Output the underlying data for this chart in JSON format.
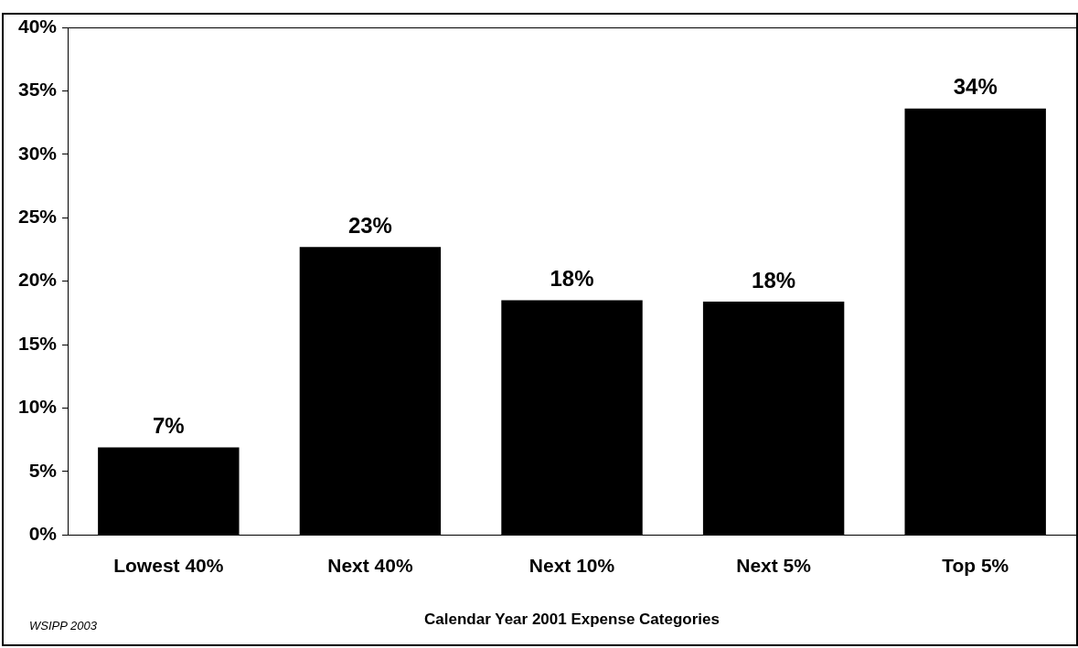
{
  "chart_data": {
    "type": "bar",
    "categories": [
      "Lowest 40%",
      "Next 40%",
      "Next 10%",
      "Next 5%",
      "Top 5%"
    ],
    "values": [
      6.9,
      22.7,
      18.5,
      18.4,
      33.6
    ],
    "value_labels": [
      "7%",
      "23%",
      "18%",
      "18%",
      "34%"
    ],
    "color": "#000000",
    "xlabel": "Calendar Year 2001 Expense Categories",
    "ylim": [
      0,
      40
    ],
    "yticks": [
      {
        "value": 0,
        "label": "0%"
      },
      {
        "value": 5,
        "label": "5%"
      },
      {
        "value": 10,
        "label": "10%"
      },
      {
        "value": 15,
        "label": "15%"
      },
      {
        "value": 20,
        "label": "20%"
      },
      {
        "value": 25,
        "label": "25%"
      },
      {
        "value": 30,
        "label": "30%"
      },
      {
        "value": 35,
        "label": "35%"
      },
      {
        "value": 40,
        "label": "40%"
      }
    ],
    "grid": false,
    "legend": false,
    "annotations": [
      "WSIPP 2003"
    ]
  }
}
